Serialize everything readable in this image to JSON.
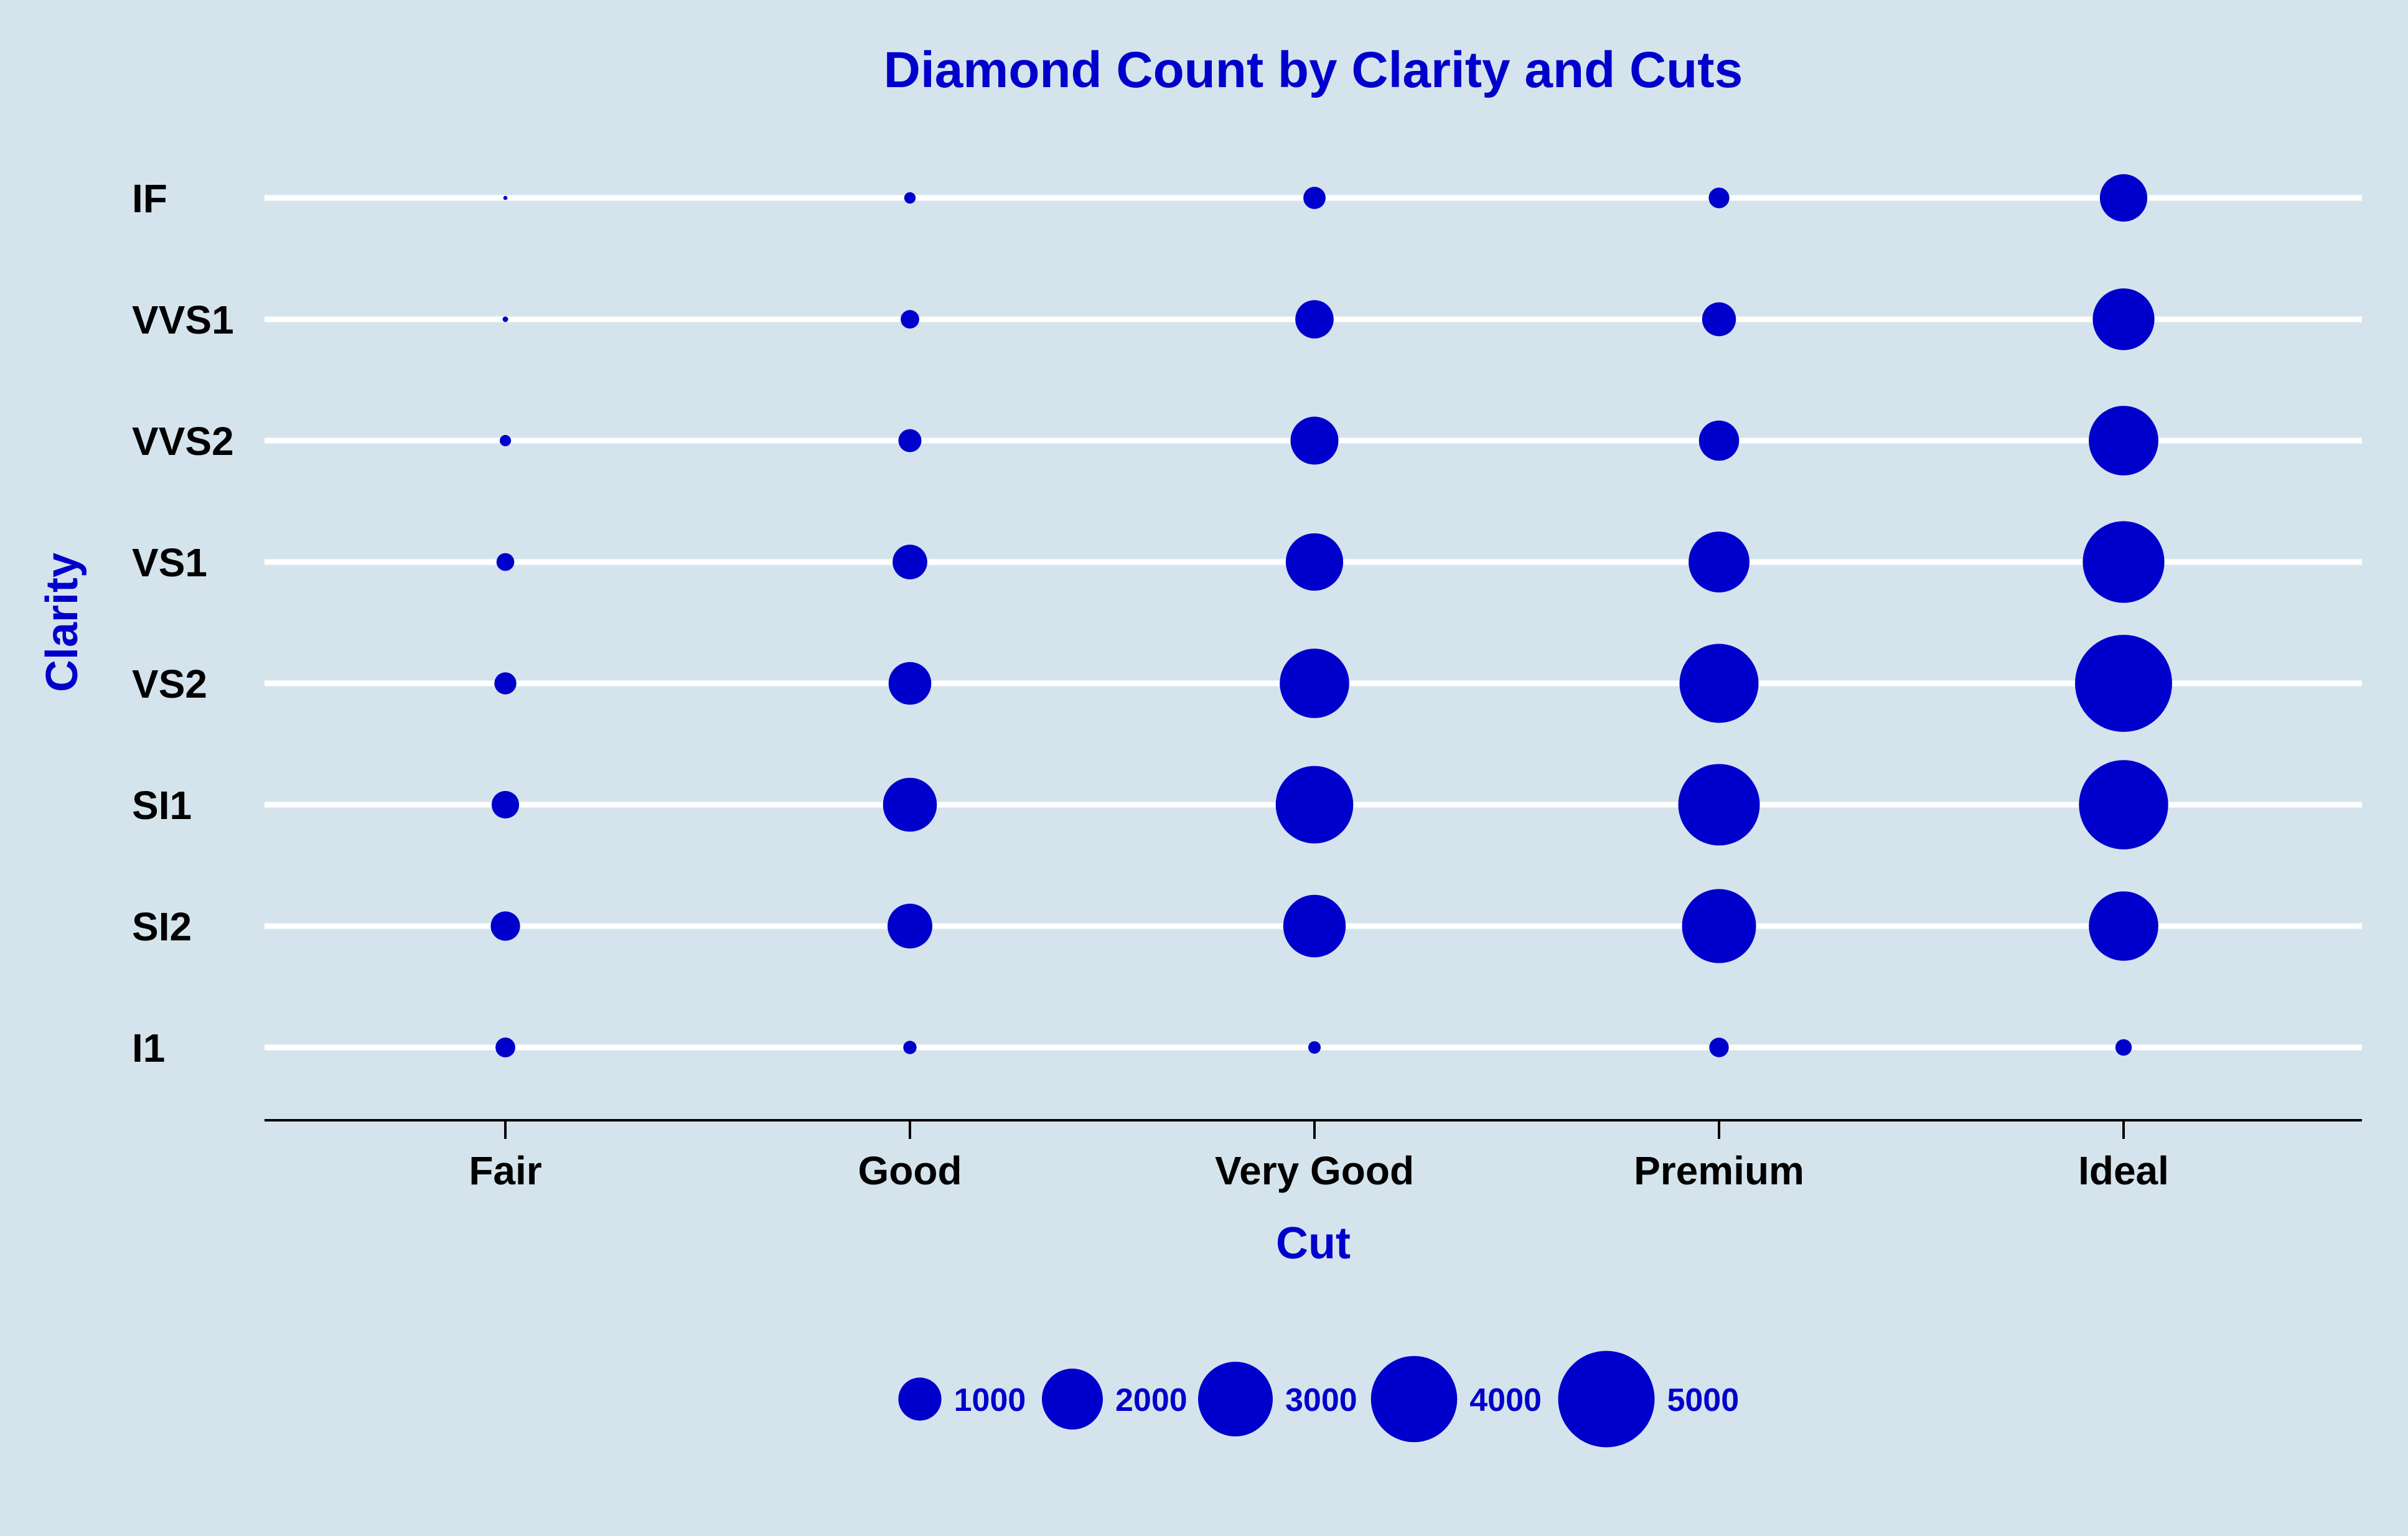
{
  "chart_data": {
    "type": "scatter",
    "title": "Diamond Count by Clarity and Cuts",
    "xlabel": "Cut",
    "ylabel": "Clarity",
    "x_categories": [
      "Fair",
      "Good",
      "Very Good",
      "Premium",
      "Ideal"
    ],
    "y_categories": [
      "I1",
      "SI2",
      "SI1",
      "VS2",
      "VS1",
      "VVS2",
      "VVS1",
      "IF"
    ],
    "size_variable": "count",
    "counts": [
      {
        "clarity": "I1",
        "values": [
          210,
          96,
          84,
          205,
          146
        ]
      },
      {
        "clarity": "SI2",
        "values": [
          466,
          1081,
          2100,
          2949,
          2598
        ]
      },
      {
        "clarity": "SI1",
        "values": [
          408,
          1560,
          3240,
          3575,
          4282
        ]
      },
      {
        "clarity": "VS2",
        "values": [
          261,
          978,
          2591,
          3357,
          5071
        ]
      },
      {
        "clarity": "VS1",
        "values": [
          170,
          648,
          1775,
          1989,
          3589
        ]
      },
      {
        "clarity": "VVS2",
        "values": [
          69,
          286,
          1235,
          870,
          2606
        ]
      },
      {
        "clarity": "VVS1",
        "values": [
          17,
          186,
          789,
          616,
          2047
        ]
      },
      {
        "clarity": "IF",
        "values": [
          9,
          71,
          268,
          230,
          1212
        ]
      }
    ],
    "size_legend": {
      "position": "bottom",
      "breaks": [
        1000,
        2000,
        3000,
        4000,
        5000
      ],
      "labels": [
        "1000",
        "2000",
        "3000",
        "4000",
        "5000"
      ]
    },
    "grid": "horizontal major lines only",
    "colors": {
      "background": "#d5e4ec",
      "points": "#0000cc",
      "title_text": "#0000cc",
      "axis_title_text": "#0000cc",
      "tick_text": "#000000",
      "gridlines": "#ffffff",
      "axis_line": "#000000"
    }
  }
}
